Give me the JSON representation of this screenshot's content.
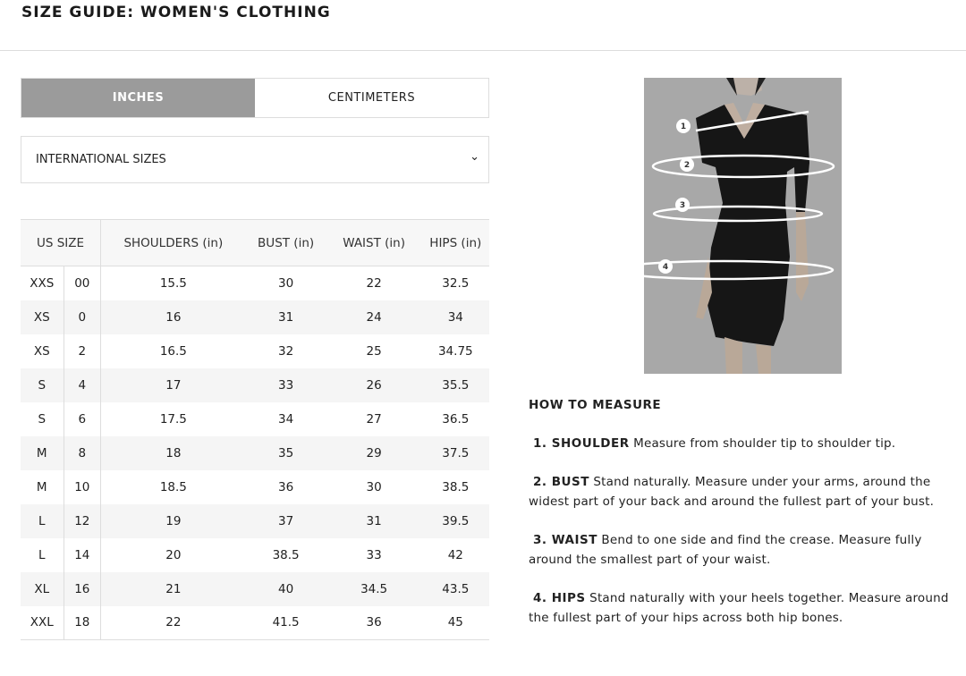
{
  "header": {
    "title": "SIZE GUIDE: WOMEN'S CLOTHING"
  },
  "units": {
    "inches": "INCHES",
    "centimeters": "CENTIMETERS",
    "selected": "INCHES"
  },
  "size_system": {
    "value": "INTERNATIONAL SIZES",
    "icon": "chevron-down-icon"
  },
  "table": {
    "headers": [
      "US SIZE",
      "SHOULDERS (in)",
      "BUST (in)",
      "WAIST (in)",
      "HIPS (in)"
    ],
    "rows": [
      [
        "XXS",
        "00",
        "15.5",
        "30",
        "22",
        "32.5"
      ],
      [
        "XS",
        "0",
        "16",
        "31",
        "24",
        "34"
      ],
      [
        "XS",
        "2",
        "16.5",
        "32",
        "25",
        "34.75"
      ],
      [
        "S",
        "4",
        "17",
        "33",
        "26",
        "35.5"
      ],
      [
        "S",
        "6",
        "17.5",
        "34",
        "27",
        "36.5"
      ],
      [
        "M",
        "8",
        "18",
        "35",
        "29",
        "37.5"
      ],
      [
        "M",
        "10",
        "18.5",
        "36",
        "30",
        "38.5"
      ],
      [
        "L",
        "12",
        "19",
        "37",
        "31",
        "39.5"
      ],
      [
        "L",
        "14",
        "20",
        "38.5",
        "33",
        "42"
      ],
      [
        "XL",
        "16",
        "21",
        "40",
        "34.5",
        "43.5"
      ],
      [
        "XXL",
        "18",
        "22",
        "41.5",
        "36",
        "45"
      ]
    ]
  },
  "photo": {
    "markers": [
      "1",
      "2",
      "3",
      "4"
    ]
  },
  "how_to": {
    "title": "HOW TO MEASURE",
    "items": [
      {
        "label": "1. SHOULDER",
        "text": "Measure from shoulder tip to shoulder tip."
      },
      {
        "label": "2. BUST",
        "text": " Stand naturally. Measure under your arms, around the widest part of your back and around the fullest part of your bust."
      },
      {
        "label": "3. WAIST",
        "text": "Bend to one side and find the crease. Measure fully around the smallest part of your waist."
      },
      {
        "label": "4. HIPS",
        "text": "Stand naturally with your heels together. Measure around the fullest part of your hips across both hip bones."
      }
    ]
  },
  "colors": {
    "active_tab": "#9b9b9b",
    "stripe": "#f5f5f5",
    "border": "#dddddd"
  }
}
